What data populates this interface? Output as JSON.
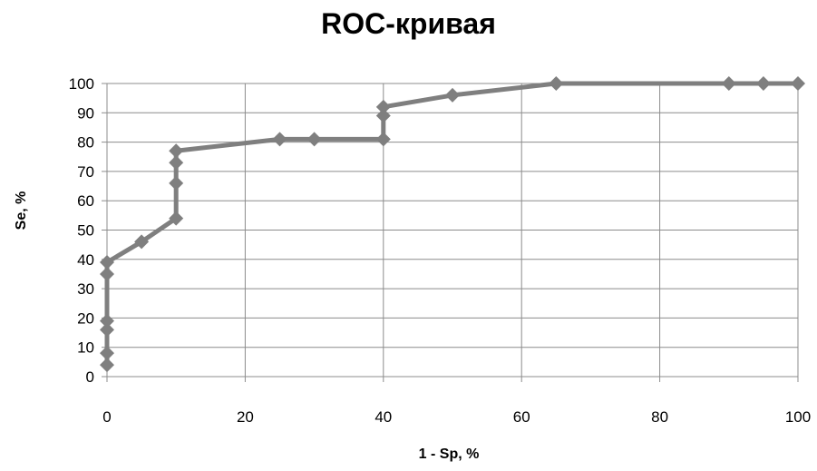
{
  "chart_data": {
    "type": "line",
    "title": "ROC-кривая",
    "xlabel": "1 - Sp, %",
    "ylabel": "Se, %",
    "xlim": [
      0,
      100
    ],
    "ylim": [
      0,
      100
    ],
    "x_ticks": [
      "0",
      "20",
      "40",
      "60",
      "80",
      "100"
    ],
    "y_ticks": [
      "0",
      "10",
      "20",
      "30",
      "40",
      "50",
      "60",
      "70",
      "80",
      "90",
      "100"
    ],
    "grid": true,
    "legend": "none",
    "marker": "diamond",
    "series_color": "#7f7f7f",
    "series": [
      {
        "points": [
          [
            0,
            4
          ],
          [
            0,
            8
          ],
          [
            0,
            16
          ],
          [
            0,
            19
          ],
          [
            0,
            35
          ],
          [
            0,
            39
          ],
          [
            5,
            46
          ],
          [
            10,
            54
          ],
          [
            10,
            66
          ],
          [
            10,
            73
          ],
          [
            10,
            77
          ],
          [
            25,
            81
          ],
          [
            30,
            81
          ],
          [
            40,
            81
          ],
          [
            40,
            89
          ],
          [
            40,
            92
          ],
          [
            50,
            96
          ],
          [
            65,
            100
          ],
          [
            90,
            100
          ],
          [
            95,
            100
          ],
          [
            100,
            100
          ]
        ]
      }
    ]
  }
}
